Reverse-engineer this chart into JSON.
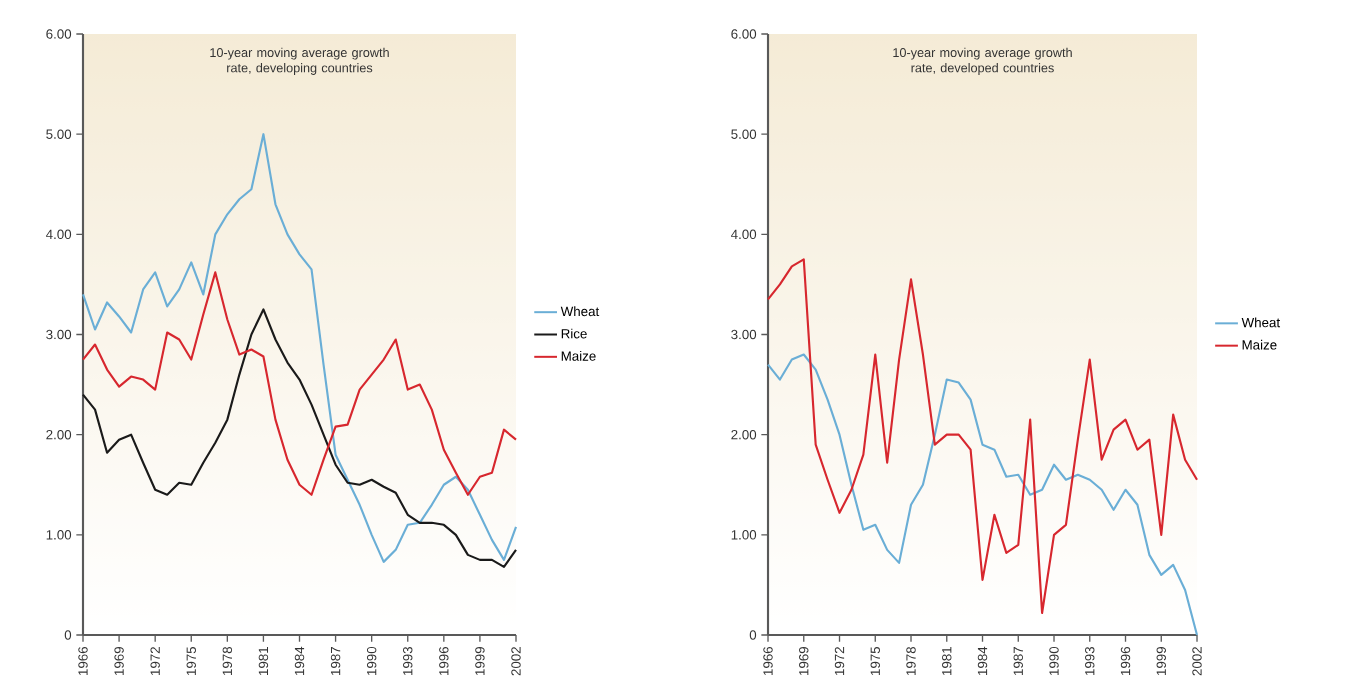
{
  "chart_data": [
    {
      "type": "line",
      "title": "10-year moving average growth rate, developing countries",
      "x": [
        1966,
        1967,
        1968,
        1969,
        1970,
        1971,
        1972,
        1973,
        1974,
        1975,
        1976,
        1977,
        1978,
        1979,
        1980,
        1981,
        1982,
        1983,
        1984,
        1985,
        1986,
        1987,
        1988,
        1989,
        1990,
        1991,
        1992,
        1993,
        1994,
        1995,
        1996,
        1997,
        1998,
        1999,
        2000,
        2001,
        2002
      ],
      "series": [
        {
          "name": "Wheat",
          "color": "#6aaed6",
          "values": [
            3.4,
            3.05,
            3.32,
            3.18,
            3.02,
            3.45,
            3.62,
            3.28,
            3.45,
            3.72,
            3.4,
            4.0,
            4.2,
            4.35,
            4.45,
            5.0,
            4.3,
            4.0,
            3.8,
            3.65,
            2.7,
            1.8,
            1.55,
            1.3,
            1.0,
            0.73,
            0.85,
            1.1,
            1.12,
            1.3,
            1.5,
            1.58,
            1.45,
            1.2,
            0.95,
            0.75,
            1.08
          ]
        },
        {
          "name": "Rice",
          "color": "#1a1a1a",
          "values": [
            2.4,
            2.25,
            1.82,
            1.95,
            2.0,
            1.72,
            1.45,
            1.4,
            1.52,
            1.5,
            1.72,
            1.92,
            2.15,
            2.6,
            3.0,
            3.25,
            2.95,
            2.72,
            2.55,
            2.3,
            2.0,
            1.7,
            1.52,
            1.5,
            1.55,
            1.48,
            1.42,
            1.2,
            1.12,
            1.12,
            1.1,
            1.0,
            0.8,
            0.75,
            0.75,
            0.68,
            0.85
          ]
        },
        {
          "name": "Maize",
          "color": "#d7272e",
          "values": [
            2.75,
            2.9,
            2.65,
            2.48,
            2.58,
            2.55,
            2.45,
            3.02,
            2.95,
            2.75,
            3.2,
            3.62,
            3.15,
            2.8,
            2.85,
            2.78,
            2.15,
            1.75,
            1.5,
            1.4,
            1.75,
            2.08,
            2.1,
            2.45,
            2.6,
            2.75,
            2.95,
            2.45,
            2.5,
            2.25,
            1.85,
            1.62,
            1.4,
            1.58,
            1.62,
            2.05,
            1.95
          ]
        }
      ],
      "xlim": [
        1966,
        2002
      ],
      "xticks": [
        1966,
        1969,
        1972,
        1975,
        1978,
        1981,
        1984,
        1987,
        1990,
        1993,
        1996,
        1999,
        2002
      ],
      "ylim": [
        0,
        6
      ],
      "yticks": [
        {
          "value": 0,
          "label": "0"
        },
        {
          "value": 1,
          "label": "1.00"
        },
        {
          "value": 2,
          "label": "2.00"
        },
        {
          "value": 3,
          "label": "3.00"
        },
        {
          "value": 4,
          "label": "4.00"
        },
        {
          "value": 5,
          "label": "5.00"
        },
        {
          "value": 6,
          "label": "6.00"
        }
      ],
      "legend": "right"
    },
    {
      "type": "line",
      "title": "10-year moving average growth rate, developed countries",
      "x": [
        1966,
        1967,
        1968,
        1969,
        1970,
        1971,
        1972,
        1973,
        1974,
        1975,
        1976,
        1977,
        1978,
        1979,
        1980,
        1981,
        1982,
        1983,
        1984,
        1985,
        1986,
        1987,
        1988,
        1989,
        1990,
        1991,
        1992,
        1993,
        1994,
        1995,
        1996,
        1997,
        1998,
        1999,
        2000,
        2001,
        2002
      ],
      "series": [
        {
          "name": "Wheat",
          "color": "#6aaed6",
          "values": [
            2.7,
            2.55,
            2.75,
            2.8,
            2.65,
            2.35,
            2.0,
            1.5,
            1.05,
            1.1,
            0.85,
            0.72,
            1.3,
            1.5,
            2.0,
            2.55,
            2.52,
            2.35,
            1.9,
            1.85,
            1.58,
            1.6,
            1.4,
            1.45,
            1.7,
            1.55,
            1.6,
            1.55,
            1.45,
            1.25,
            1.45,
            1.3,
            0.8,
            0.6,
            0.7,
            0.45,
            0.0
          ]
        },
        {
          "name": "Maize",
          "color": "#d7272e",
          "values": [
            3.35,
            3.5,
            3.68,
            3.75,
            1.9,
            1.55,
            1.22,
            1.45,
            1.8,
            2.8,
            1.72,
            2.75,
            3.55,
            2.8,
            1.9,
            2.0,
            2.0,
            1.85,
            0.55,
            1.2,
            0.82,
            0.9,
            2.15,
            0.22,
            1.0,
            1.1,
            1.95,
            2.75,
            1.75,
            2.05,
            2.15,
            1.85,
            1.95,
            1.0,
            2.2,
            1.75,
            1.55
          ]
        }
      ],
      "xlim": [
        1966,
        2002
      ],
      "xticks": [
        1966,
        1969,
        1972,
        1975,
        1978,
        1981,
        1984,
        1987,
        1990,
        1993,
        1996,
        1999,
        2002
      ],
      "ylim": [
        0,
        6
      ],
      "yticks": [
        {
          "value": 0,
          "label": "0"
        },
        {
          "value": 1,
          "label": "1.00"
        },
        {
          "value": 2,
          "label": "2.00"
        },
        {
          "value": 3,
          "label": "3.00"
        },
        {
          "value": 4,
          "label": "4.00"
        },
        {
          "value": 5,
          "label": "5.00"
        },
        {
          "value": 6,
          "label": "6.00"
        }
      ],
      "legend": "right"
    }
  ]
}
